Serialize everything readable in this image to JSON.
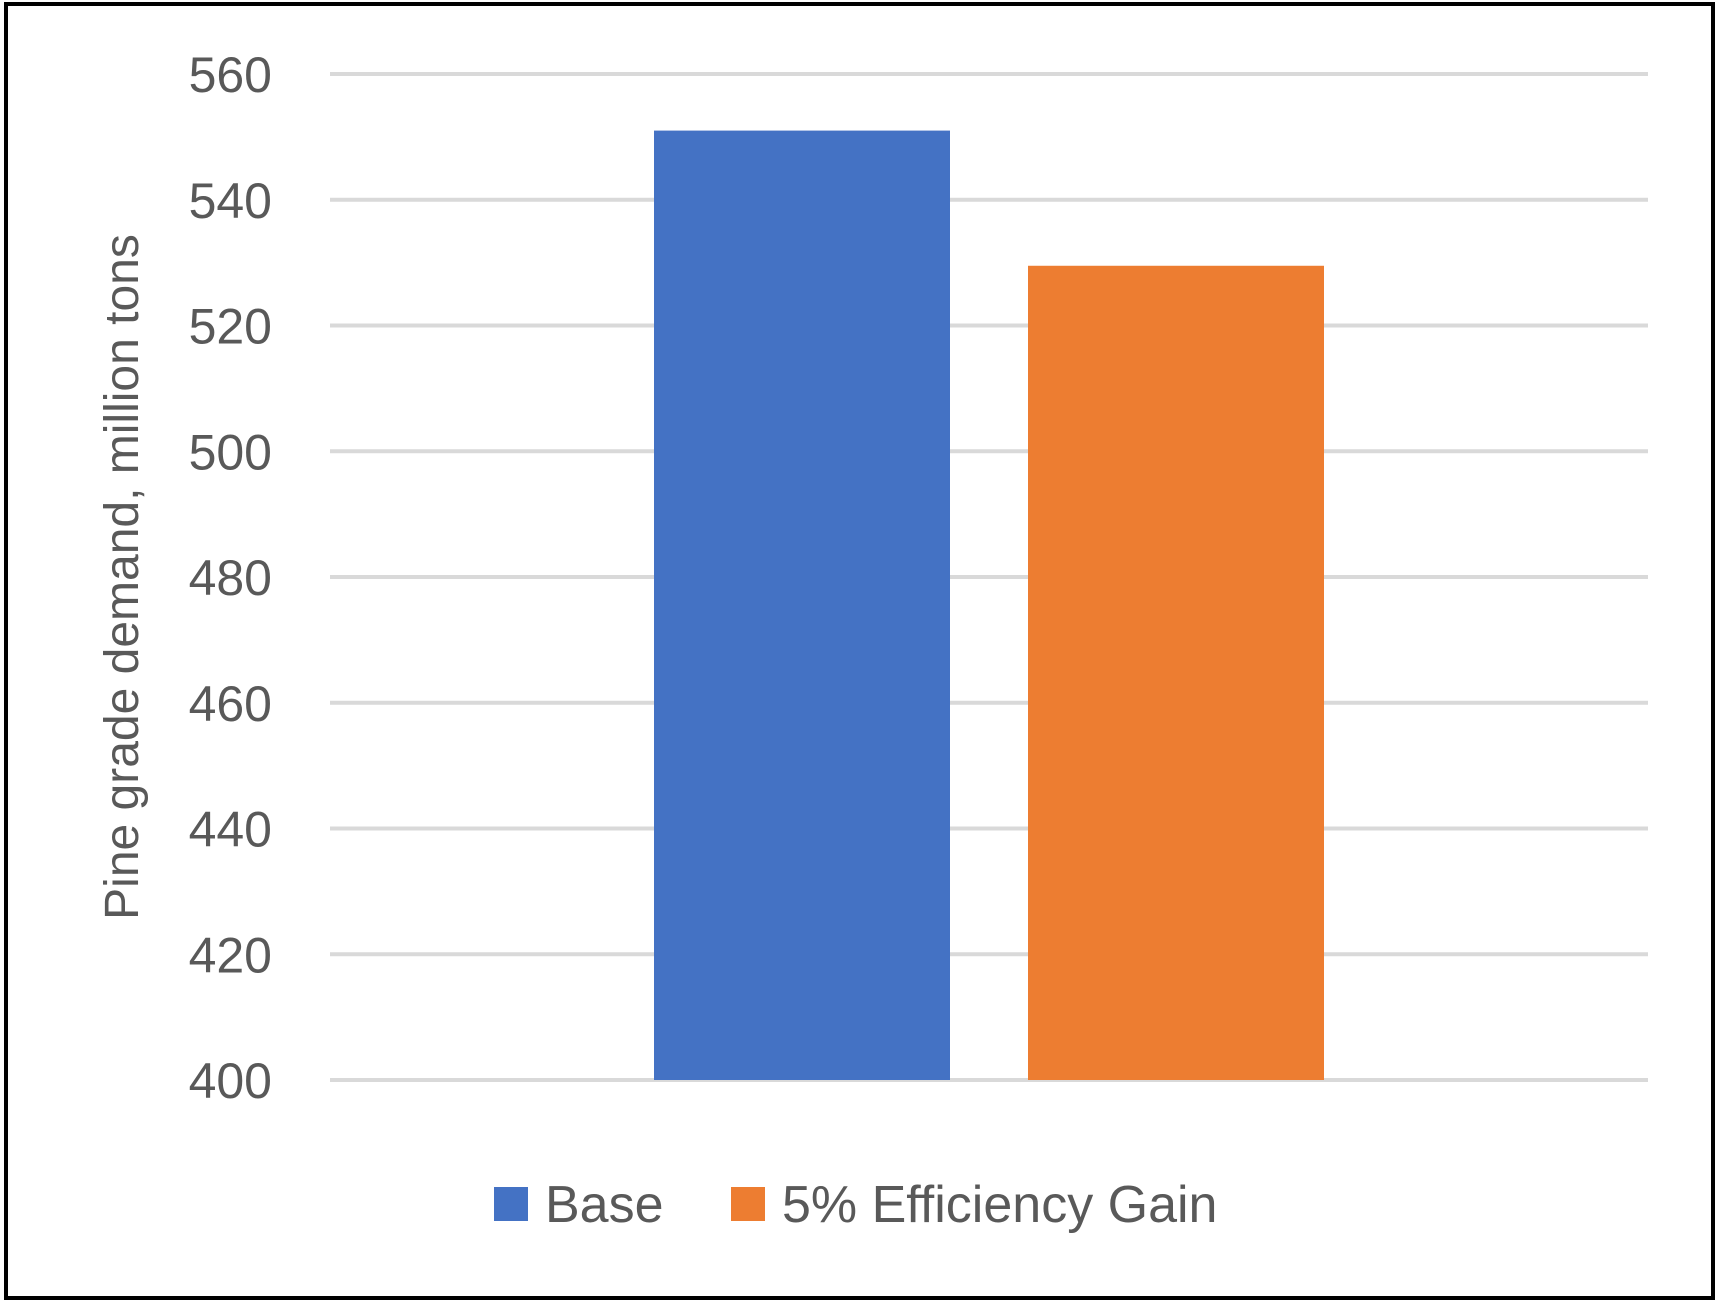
{
  "chart_data": {
    "type": "bar",
    "title": "",
    "xlabel": "",
    "ylabel": "Pine grade demand, million tons",
    "ylim": [
      400,
      560
    ],
    "yticks": [
      400,
      420,
      440,
      460,
      480,
      500,
      520,
      540,
      560
    ],
    "grid": true,
    "legend_position": "bottom",
    "series": [
      {
        "name": "Base",
        "value": 551,
        "color": "#4472C4"
      },
      {
        "name": "5% Efficiency Gain",
        "value": 529.5,
        "color": "#ED7D31"
      }
    ]
  }
}
